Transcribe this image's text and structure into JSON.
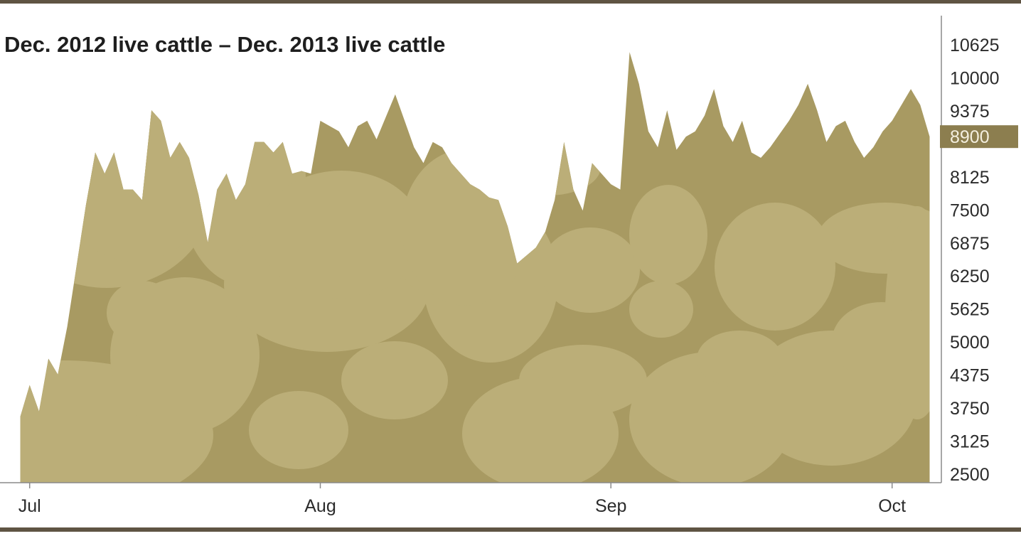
{
  "chart_data": {
    "type": "area",
    "title": "Dec. 2012 live cattle – Dec. 2013 live cattle",
    "xlabel": "",
    "ylabel": "",
    "x_ticks": [
      {
        "label": "Jul",
        "x": 1.0
      },
      {
        "label": "Aug",
        "x": 32.0
      },
      {
        "label": "Sep",
        "x": 63.0
      },
      {
        "label": "Oct",
        "x": 93.0
      }
    ],
    "y_ticks": [
      10625,
      10000,
      9375,
      8900,
      8125,
      7500,
      6875,
      6250,
      5625,
      5000,
      4375,
      3750,
      3125,
      2500
    ],
    "ylim": [
      2500,
      10625
    ],
    "xlim": [
      -0.8,
      97.8
    ],
    "grid": false,
    "legend": "none",
    "current_value": {
      "label": "8900",
      "value": 8900
    },
    "colors": {
      "dark": "#a89a62",
      "light": "#bbae78",
      "rule": "#5f5443",
      "axis": "#8a8a8a",
      "flag": "#8c7e4f"
    },
    "series": [
      {
        "x": [
          0,
          1,
          2,
          3,
          4,
          5,
          7,
          8,
          9,
          10,
          11,
          12,
          13,
          14,
          15,
          16,
          17,
          18,
          19,
          20,
          21,
          22,
          23,
          24,
          25,
          26,
          27,
          28,
          29,
          30,
          31,
          32,
          34,
          35,
          36,
          37,
          38,
          40,
          41,
          42,
          43,
          44,
          45,
          46,
          47,
          48,
          49,
          50,
          51,
          52,
          53,
          55,
          56,
          57,
          58,
          59,
          60,
          61,
          62,
          63,
          64,
          65,
          66,
          67,
          68,
          69,
          70,
          71,
          72,
          73,
          74,
          75,
          76,
          77,
          78,
          79,
          80,
          81,
          82,
          83,
          84,
          85,
          86,
          87,
          88,
          89,
          90,
          91,
          92,
          93,
          94,
          95,
          96,
          97
        ],
        "y": [
          3600,
          4200,
          3700,
          4700,
          4400,
          5300,
          7600,
          8600,
          8200,
          8600,
          7900,
          7900,
          7700,
          9400,
          9200,
          8500,
          8800,
          8500,
          7800,
          6900,
          7900,
          8200,
          7700,
          8000,
          8800,
          8800,
          8600,
          8800,
          8200,
          8250,
          8200,
          9200,
          9000,
          8700,
          9100,
          9200,
          8850,
          9700,
          9200,
          8700,
          8400,
          8800,
          8700,
          8400,
          8200,
          8000,
          7900,
          7750,
          7700,
          7200,
          6500,
          6800,
          7100,
          7700,
          8800,
          7900,
          7500,
          8400,
          8200,
          8000,
          7900,
          10500,
          9900,
          9000,
          8700,
          9400,
          8650,
          8900,
          9000,
          9300,
          9800,
          9100,
          8800,
          9200,
          8600,
          8500,
          8700,
          8950,
          9200,
          9500,
          9900,
          9400,
          8800,
          9100,
          9200,
          8800,
          8500,
          8700,
          9000,
          9200,
          9500,
          9800,
          9500,
          8900
        ]
      }
    ]
  }
}
